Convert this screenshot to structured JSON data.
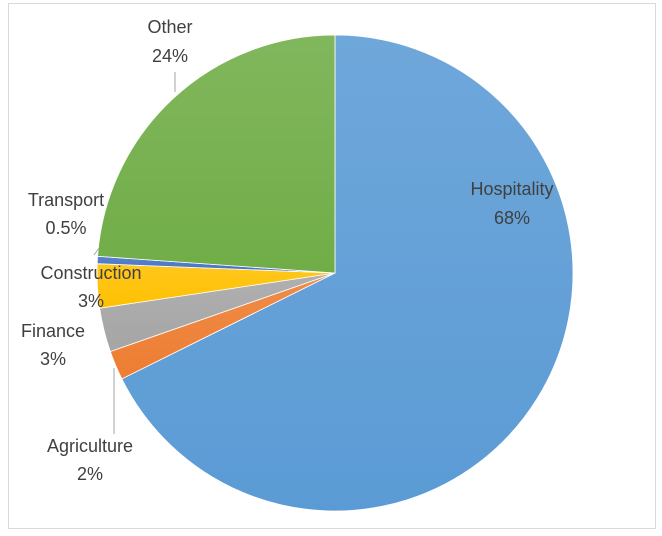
{
  "chart_data": {
    "type": "pie",
    "title": "",
    "slices": [
      {
        "name": "Hospitality",
        "value": 68,
        "label_value": "68%",
        "color": "#5b9bd5"
      },
      {
        "name": "Agriculture",
        "value": 2,
        "label_value": "2%",
        "color": "#ed7d31"
      },
      {
        "name": "Finance",
        "value": 3,
        "label_value": "3%",
        "color": "#a5a5a5"
      },
      {
        "name": "Construction",
        "value": 3,
        "label_value": "3%",
        "color": "#ffc000"
      },
      {
        "name": "Transport",
        "value": 0.5,
        "label_value": "0.5%",
        "color": "#4472c4"
      },
      {
        "name": "Other",
        "value": 24,
        "label_value": "24%",
        "color": "#70ad47"
      }
    ],
    "legend": "none",
    "data_labels": "outside-and-inside"
  }
}
